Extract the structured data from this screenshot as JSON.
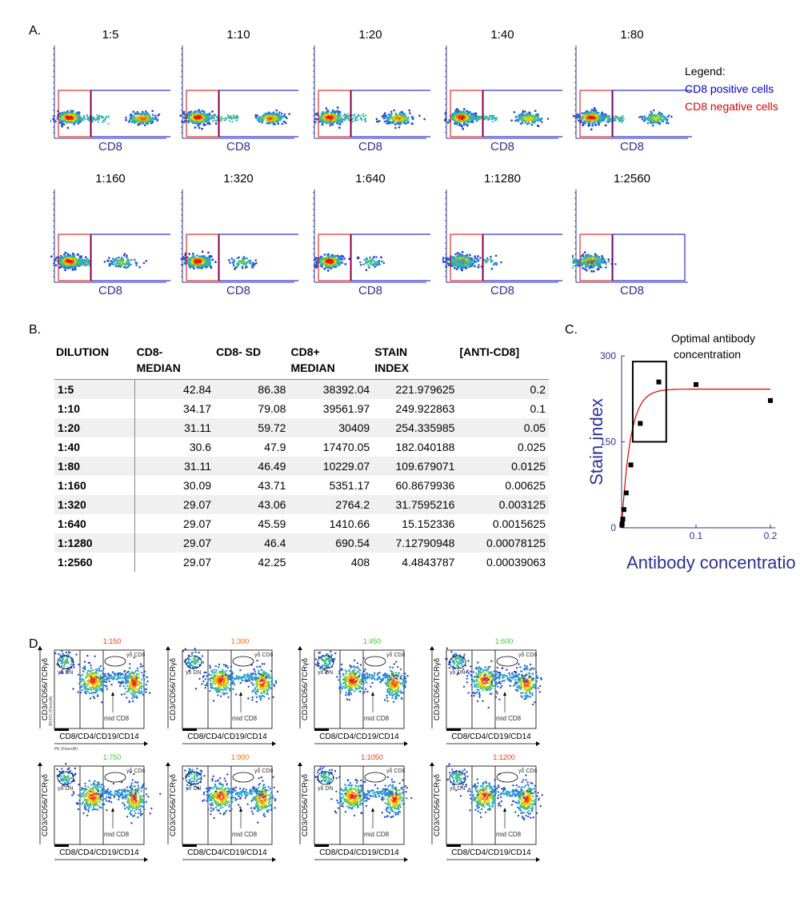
{
  "panel_labels": {
    "a": "A.",
    "b": "B.",
    "c": "C.",
    "d": "D."
  },
  "panelA": {
    "x_label": "CD8",
    "dilutions_row1": [
      "1:5",
      "1:10",
      "1:20",
      "1:40",
      "1:80"
    ],
    "dilutions_row2": [
      "1:160",
      "1:320",
      "1:640",
      "1:1280",
      "1:2560"
    ],
    "legend": {
      "title": "Legend:",
      "positive": "CD8 positive cells",
      "negative": "CD8 negative cells",
      "positive_color": "#0000cc",
      "negative_color": "#e00000"
    }
  },
  "tableB": {
    "headers": [
      "DILUTION",
      "CD8-\nMEDIAN",
      "CD8- SD",
      "CD8+\nMEDIAN",
      "STAIN\nINDEX",
      "[ANTI-CD8]"
    ],
    "rows": [
      [
        "1:5",
        "42.84",
        "86.38",
        "38392.04",
        "221.979625",
        "0.2"
      ],
      [
        "1:10",
        "34.17",
        "79.08",
        "39561.97",
        "249.922863",
        "0.1"
      ],
      [
        "1:20",
        "31.11",
        "59.72",
        "30409",
        "254.335985",
        "0.05"
      ],
      [
        "1:40",
        "30.6",
        "47.9",
        "17470.05",
        "182.040188",
        "0.025"
      ],
      [
        "1:80",
        "31.11",
        "46.49",
        "10229.07",
        "109.679071",
        "0.0125"
      ],
      [
        "1:160",
        "30.09",
        "43.71",
        "5351.17",
        "60.8679936",
        "0.00625"
      ],
      [
        "1:320",
        "29.07",
        "43.06",
        "2764.2",
        "31.7595216",
        "0.003125"
      ],
      [
        "1:640",
        "29.07",
        "45.59",
        "1410.66",
        "15.152336",
        "0.0015625"
      ],
      [
        "1:1280",
        "29.07",
        "46.4",
        "690.54",
        "7.12790948",
        "0.00078125"
      ],
      [
        "1:2560",
        "29.07",
        "42.25",
        "408",
        "4.4843787",
        "0.00039063"
      ]
    ]
  },
  "chart_data": {
    "type": "scatter",
    "title": "",
    "xlabel": "Antibody concentration",
    "ylabel": "Stain index",
    "xlim": [
      0,
      0.2
    ],
    "ylim": [
      0,
      300
    ],
    "xticks": [
      "0.1",
      "0.2"
    ],
    "yticks": [
      "0",
      "150",
      "300"
    ],
    "points": [
      {
        "x": 0.2,
        "y": 221.98
      },
      {
        "x": 0.1,
        "y": 249.92
      },
      {
        "x": 0.05,
        "y": 254.34
      },
      {
        "x": 0.025,
        "y": 182.04
      },
      {
        "x": 0.0125,
        "y": 109.68
      },
      {
        "x": 0.00625,
        "y": 60.87
      },
      {
        "x": 0.003125,
        "y": 31.76
      },
      {
        "x": 0.0015625,
        "y": 15.15
      },
      {
        "x": 0.00078125,
        "y": 7.13
      },
      {
        "x": 0.00039063,
        "y": 4.48
      }
    ],
    "fit_curve": {
      "plateau": 242,
      "rate": 85,
      "color": "#e00000"
    },
    "annotation": "Optimal antibody\nconcentration",
    "optimal_range": {
      "x_start": 0.015,
      "x_end": 0.06,
      "y_start": 150,
      "y_end": 290
    },
    "axis_color": "#2e3192"
  },
  "panelD": {
    "y_label": "CD3/CD56/TCRγδ",
    "x_label": "CD8/CD4/CD19/CD14",
    "gate_dn": "γδ DN",
    "gate_cd8": "γδ CD8",
    "mid_label": "mid CD8",
    "first_y_detector": "BV421 (FluoroA)",
    "first_x_detector": "PE (FluoroB)",
    "titles": [
      {
        "text": "1:150",
        "color": "#ff3300"
      },
      {
        "text": "1:300",
        "color": "#ff6600"
      },
      {
        "text": "1:450",
        "color": "#33cc33"
      },
      {
        "text": "1:600",
        "color": "#33cc33"
      },
      {
        "text": "1:750",
        "color": "#33cc33"
      },
      {
        "text": "1:900",
        "color": "#ff6600"
      },
      {
        "text": "1:1050",
        "color": "#ff3300"
      },
      {
        "text": "1:1200",
        "color": "#ff3300"
      }
    ]
  }
}
